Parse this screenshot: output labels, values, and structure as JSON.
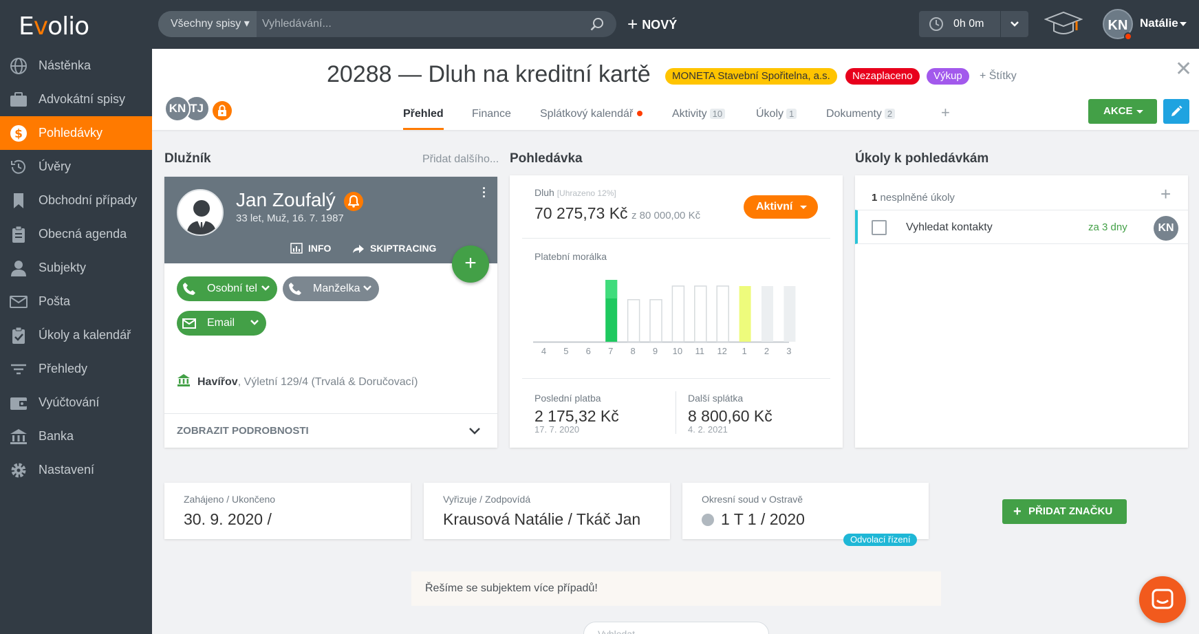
{
  "app": {
    "logo": "Evolio"
  },
  "topbar": {
    "search_scope": "Všechny spisy",
    "search_placeholder": "Vyhledávání...",
    "new_label": "NOVÝ",
    "timer": "0h 0m",
    "user_initials": "KN",
    "user_name": "Natálie"
  },
  "sidebar": {
    "items": [
      {
        "label": "Nástěnka",
        "icon": "globe-icon"
      },
      {
        "label": "Advokátní spisy",
        "icon": "briefcase-icon"
      },
      {
        "label": "Pohledávky",
        "icon": "dollar-icon",
        "active": true
      },
      {
        "label": "Úvěry",
        "icon": "history-icon"
      },
      {
        "label": "Obchodní případy",
        "icon": "bookmark-icon"
      },
      {
        "label": "Obecná agenda",
        "icon": "clipboard-icon"
      },
      {
        "label": "Subjekty",
        "icon": "person-icon"
      },
      {
        "label": "Pošta",
        "icon": "mail-icon"
      },
      {
        "label": "Úkoly a kalendář",
        "icon": "clipboard-check-icon"
      },
      {
        "label": "Přehledy",
        "icon": "filter-icon"
      },
      {
        "label": "Vyúčtování",
        "icon": "wallet-icon"
      },
      {
        "label": "Banka",
        "icon": "bank-icon"
      },
      {
        "label": "Nastavení",
        "icon": "gear-icon"
      }
    ]
  },
  "header": {
    "title": "20288 — Dluh na kreditní kartě",
    "tags": [
      "MONETA Stavební Spořitelna, a.s.",
      "Nezaplaceno",
      "Výkup"
    ],
    "add_tags": "+ Štítky",
    "avatars": [
      "KN",
      "TJ"
    ],
    "tabs": [
      {
        "label": "Přehled",
        "active": true
      },
      {
        "label": "Finance"
      },
      {
        "label": "Splátkový kalendář",
        "dot": true
      },
      {
        "label": "Aktivity",
        "count": "10"
      },
      {
        "label": "Úkoly",
        "count": "1"
      },
      {
        "label": "Dokumenty",
        "count": "2"
      }
    ],
    "add_tab": "+",
    "action_label": "AKCE"
  },
  "debtor": {
    "section_title": "Dlužník",
    "add_more": "Přidat dalšího...",
    "name": "Jan Zoufalý",
    "sub": "33 let, Muž, 16. 7. 1987",
    "info_link": "INFO",
    "skiptracing_link": "SKIPTRACING",
    "fab": "+",
    "contacts": [
      {
        "label": "Osobní tel",
        "icon": "phone-icon"
      },
      {
        "label": "Manželka",
        "icon": "phone-icon"
      },
      {
        "label": "Email",
        "icon": "mail-icon"
      }
    ],
    "address_city": "Havířov",
    "address_rest": ", Výletní 129/4 (Trvalá & Doručovací)",
    "details_label": "ZOBRAZIT PODROBNOSTI"
  },
  "receivable": {
    "section_title": "Pohledávka",
    "debt_label": "Dluh",
    "debt_paid_note": "[Uhrazeno 12%]",
    "debt_value": "70 275,73 Kč",
    "debt_total": "z 80 000,00 Kč",
    "status_button": "Aktivní",
    "morality_label": "Platební morálka",
    "last_payment_label": "Poslední platba",
    "last_payment_value": "2 175,32 Kč",
    "last_payment_date": "17. 7. 2020",
    "next_payment_label": "Další splátka",
    "next_payment_value": "8 800,60 Kč",
    "next_payment_date": "4. 2. 2021"
  },
  "chart_data": {
    "type": "bar",
    "categories": [
      "4",
      "5",
      "6",
      "7",
      "8",
      "9",
      "10",
      "11",
      "12",
      "1",
      "2",
      "3"
    ],
    "series": [
      {
        "values": [
          0,
          0,
          0,
          100,
          68,
          68,
          90,
          90,
          90,
          90,
          90,
          90
        ]
      }
    ],
    "bar_styles": [
      "none",
      "none",
      "none",
      "paid",
      "outline",
      "outline",
      "outline",
      "outline",
      "outline",
      "current",
      "future",
      "future"
    ],
    "colors": {
      "paid": "#1ec95f",
      "paid_top": "#40dc7c",
      "current": "#eefb7c",
      "future": "#eceff1",
      "outline": "#d6dadd"
    },
    "ylim": [
      0,
      100
    ],
    "grid": false
  },
  "tasks": {
    "section_title": "Úkoly k pohledávkám",
    "count": "1",
    "count_label": "nesplněné úkoly",
    "add": "+",
    "items": [
      {
        "title": "Vyhledat kontakty",
        "due": "za 3 dny",
        "assignee": "KN"
      }
    ]
  },
  "info": {
    "started_label": "Zahájeno / Ukončeno",
    "started_value": "30. 9. 2020 /",
    "handler_label": "Vyřizuje / Zodpovídá",
    "handler_value": "Krausová Natálie / Tkáč Jan",
    "court_label": "Okresní soud v Ostravě",
    "court_value": "1 T 1 / 2020",
    "appeal_badge": "Odvolací řízení",
    "add_mark": "PŘIDAT ZNAČKU"
  },
  "note": "Řešíme se subjektem více případů!",
  "bottom_search_placeholder": "Vyhledat"
}
